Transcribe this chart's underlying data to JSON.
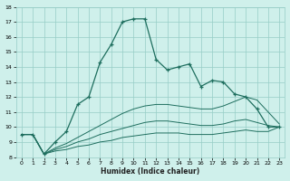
{
  "xlabel": "Humidex (Indice chaleur)",
  "x": [
    0,
    1,
    2,
    3,
    4,
    5,
    6,
    7,
    8,
    9,
    10,
    11,
    12,
    13,
    14,
    15,
    16,
    17,
    18,
    19,
    20,
    21,
    22,
    23
  ],
  "line1": [
    9.5,
    9.5,
    8.2,
    9.0,
    9.7,
    11.5,
    12.0,
    14.3,
    15.5,
    17.0,
    17.2,
    17.2,
    14.5,
    13.8,
    14.0,
    14.2,
    12.7,
    13.1,
    13.0,
    12.2,
    12.0,
    11.2,
    10.0,
    10.0
  ],
  "line2": [
    9.5,
    9.5,
    8.2,
    8.6,
    8.9,
    9.3,
    9.7,
    10.1,
    10.5,
    10.9,
    11.2,
    11.4,
    11.5,
    11.5,
    11.4,
    11.3,
    11.2,
    11.2,
    11.4,
    11.7,
    12.0,
    11.8,
    11.0,
    10.2
  ],
  "line3": [
    9.5,
    9.5,
    8.2,
    8.5,
    8.7,
    9.0,
    9.2,
    9.5,
    9.7,
    9.9,
    10.1,
    10.3,
    10.4,
    10.4,
    10.3,
    10.2,
    10.1,
    10.1,
    10.2,
    10.4,
    10.5,
    10.3,
    10.1,
    10.0
  ],
  "line4": [
    9.5,
    9.5,
    8.2,
    8.4,
    8.5,
    8.7,
    8.8,
    9.0,
    9.1,
    9.3,
    9.4,
    9.5,
    9.6,
    9.6,
    9.6,
    9.5,
    9.5,
    9.5,
    9.6,
    9.7,
    9.8,
    9.7,
    9.7,
    10.0
  ],
  "line_color": "#1e6e5e",
  "bg_color": "#cff0eb",
  "grid_color": "#96cdc6",
  "ylim": [
    8,
    18
  ],
  "xlim": [
    -0.5,
    23.5
  ],
  "yticks": [
    8,
    9,
    10,
    11,
    12,
    13,
    14,
    15,
    16,
    17,
    18
  ],
  "xticks": [
    0,
    1,
    2,
    3,
    4,
    5,
    6,
    7,
    8,
    9,
    10,
    11,
    12,
    13,
    14,
    15,
    16,
    17,
    18,
    19,
    20,
    21,
    22,
    23
  ]
}
